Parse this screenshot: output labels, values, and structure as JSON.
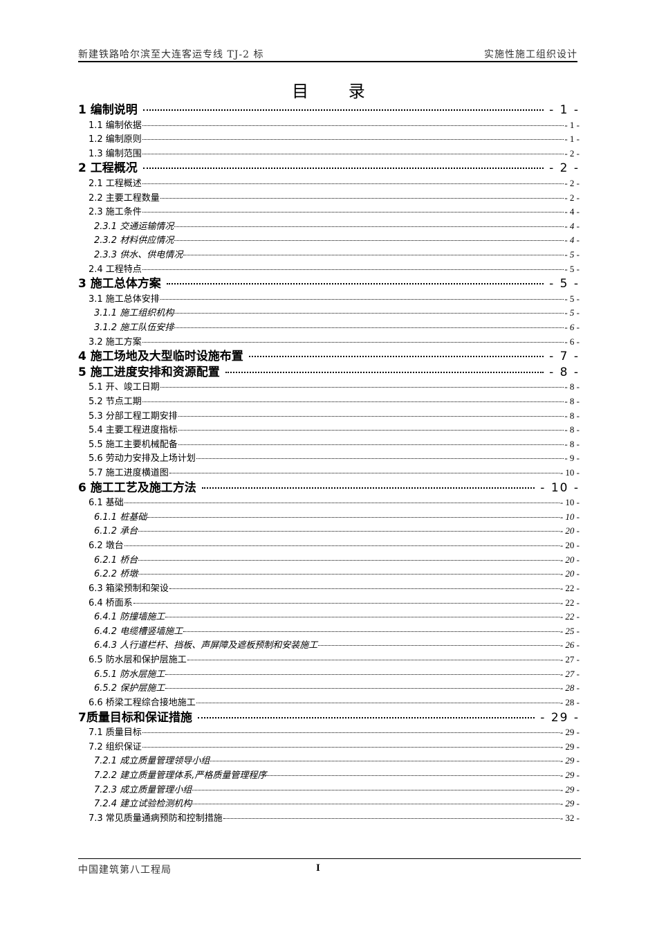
{
  "header": {
    "left": "新建铁路哈尔滨至大连客运专线 TJ-2 标",
    "right": "实施性施工组织设计"
  },
  "title": "目 录",
  "toc": [
    {
      "level": 1,
      "label": "1 编制说明",
      "page": "- 1 -"
    },
    {
      "level": 2,
      "label": "1.1 编制依据",
      "page": "- 1 -"
    },
    {
      "level": 2,
      "label": "1.2 编制原则",
      "page": "- 1 -"
    },
    {
      "level": 2,
      "label": "1.3 编制范围",
      "page": "- 2 -"
    },
    {
      "level": 1,
      "label": "2 工程概况",
      "page": "- 2 -"
    },
    {
      "level": 2,
      "label": "2.1 工程概述",
      "page": "- 2 -"
    },
    {
      "level": 2,
      "label": "2.2 主要工程数量",
      "page": "- 2 -"
    },
    {
      "level": 2,
      "label": "2.3 施工条件",
      "page": "- 4 -"
    },
    {
      "level": 3,
      "label": "2.3.1 交通运输情况",
      "page": "- 4 -"
    },
    {
      "level": 3,
      "label": "2.3.2 材料供应情况",
      "page": "- 4 -"
    },
    {
      "level": 3,
      "label": "2.3.3 供水、供电情况",
      "page": "- 5 -"
    },
    {
      "level": 2,
      "label": "2.4 工程特点",
      "page": "- 5 -"
    },
    {
      "level": 1,
      "label": "3 施工总体方案",
      "page": "- 5 -"
    },
    {
      "level": 2,
      "label": "3.1 施工总体安排",
      "page": "- 5 -"
    },
    {
      "level": 3,
      "label": "3.1.1 施工组织机构",
      "page": "- 5 -"
    },
    {
      "level": 3,
      "label": "3.1.2 施工队伍安排",
      "page": "- 6 -"
    },
    {
      "level": 2,
      "label": "3.2 施工方案",
      "page": "- 6 -"
    },
    {
      "level": 1,
      "label": "4 施工场地及大型临时设施布置",
      "page": "- 7 -"
    },
    {
      "level": 1,
      "label": "5 施工进度安排和资源配置",
      "page": "- 8 -"
    },
    {
      "level": 2,
      "label": "5.1 开、竣工日期",
      "page": "- 8 -"
    },
    {
      "level": 2,
      "label": "5.2 节点工期",
      "page": "- 8 -"
    },
    {
      "level": 2,
      "label": "5.3 分部工程工期安排",
      "page": "- 8 -"
    },
    {
      "level": 2,
      "label": "5.4 主要工程进度指标",
      "page": "- 8 -"
    },
    {
      "level": 2,
      "label": "5.5 施工主要机械配备",
      "page": "- 8 -"
    },
    {
      "level": 2,
      "label": "5.6 劳动力安排及上场计划",
      "page": "- 9 -"
    },
    {
      "level": 2,
      "label": "5.7 施工进度横道图",
      "page": "- 10 -"
    },
    {
      "level": 1,
      "label": "6 施工工艺及施工方法",
      "page": "- 10 -"
    },
    {
      "level": 2,
      "label": "6.1 基础",
      "page": "- 10 -"
    },
    {
      "level": 3,
      "label": "6.1.1 桩基础",
      "page": "- 10 -"
    },
    {
      "level": 3,
      "label": "6.1.2 承台",
      "page": "- 20 -"
    },
    {
      "level": 2,
      "label": "6.2 墩台",
      "page": "- 20 -"
    },
    {
      "level": 3,
      "label": "6.2.1 桥台",
      "page": "- 20 -"
    },
    {
      "level": 3,
      "label": "6.2.2 桥墩",
      "page": "- 20 -"
    },
    {
      "level": 2,
      "label": "6.3 箱梁预制和架设",
      "page": "- 22 -"
    },
    {
      "level": 2,
      "label": "6.4 桥面系",
      "page": "- 22 -"
    },
    {
      "level": 3,
      "label": "6.4.1 防撞墙施工",
      "page": "- 22 -"
    },
    {
      "level": 3,
      "label": "6.4.2 电缆槽竖墙施工",
      "page": "- 25 -"
    },
    {
      "level": 3,
      "label": "6.4.3 人行道栏杆、挡板、声屏障及遮板预制和安装施工",
      "page": "- 26 -"
    },
    {
      "level": 2,
      "label": "6.5 防水层和保护层施工",
      "page": "- 27 -"
    },
    {
      "level": 3,
      "label": "6.5.1 防水层施工",
      "page": "- 27 -"
    },
    {
      "level": 3,
      "label": "6.5.2 保护层施工",
      "page": "- 28 -"
    },
    {
      "level": 2,
      "label": "6.6 桥梁工程综合接地施工",
      "page": "- 28 -"
    },
    {
      "level": 1,
      "label": "7质量目标和保证措施",
      "page": "- 29 -"
    },
    {
      "level": 2,
      "label": "7.1 质量目标",
      "page": "- 29 -"
    },
    {
      "level": 2,
      "label": "7.2 组织保证",
      "page": "- 29 -"
    },
    {
      "level": 3,
      "label": "7.2.1 成立质量管理领导小组",
      "page": "- 29 -"
    },
    {
      "level": 3,
      "label": "7.2.2 建立质量管理体系,严格质量管理程序",
      "page": "- 29 -"
    },
    {
      "level": 3,
      "label": "7.2.3 成立质量管理小组",
      "page": "- 29 -"
    },
    {
      "level": 3,
      "label": "7.2.4 建立试验检测机构",
      "page": "- 29 -"
    },
    {
      "level": 2,
      "label": "7.3 常见质量通病预防和控制措施",
      "page": "- 32 -"
    }
  ],
  "footer": {
    "left": "中国建筑第八工程局",
    "page": "I"
  }
}
